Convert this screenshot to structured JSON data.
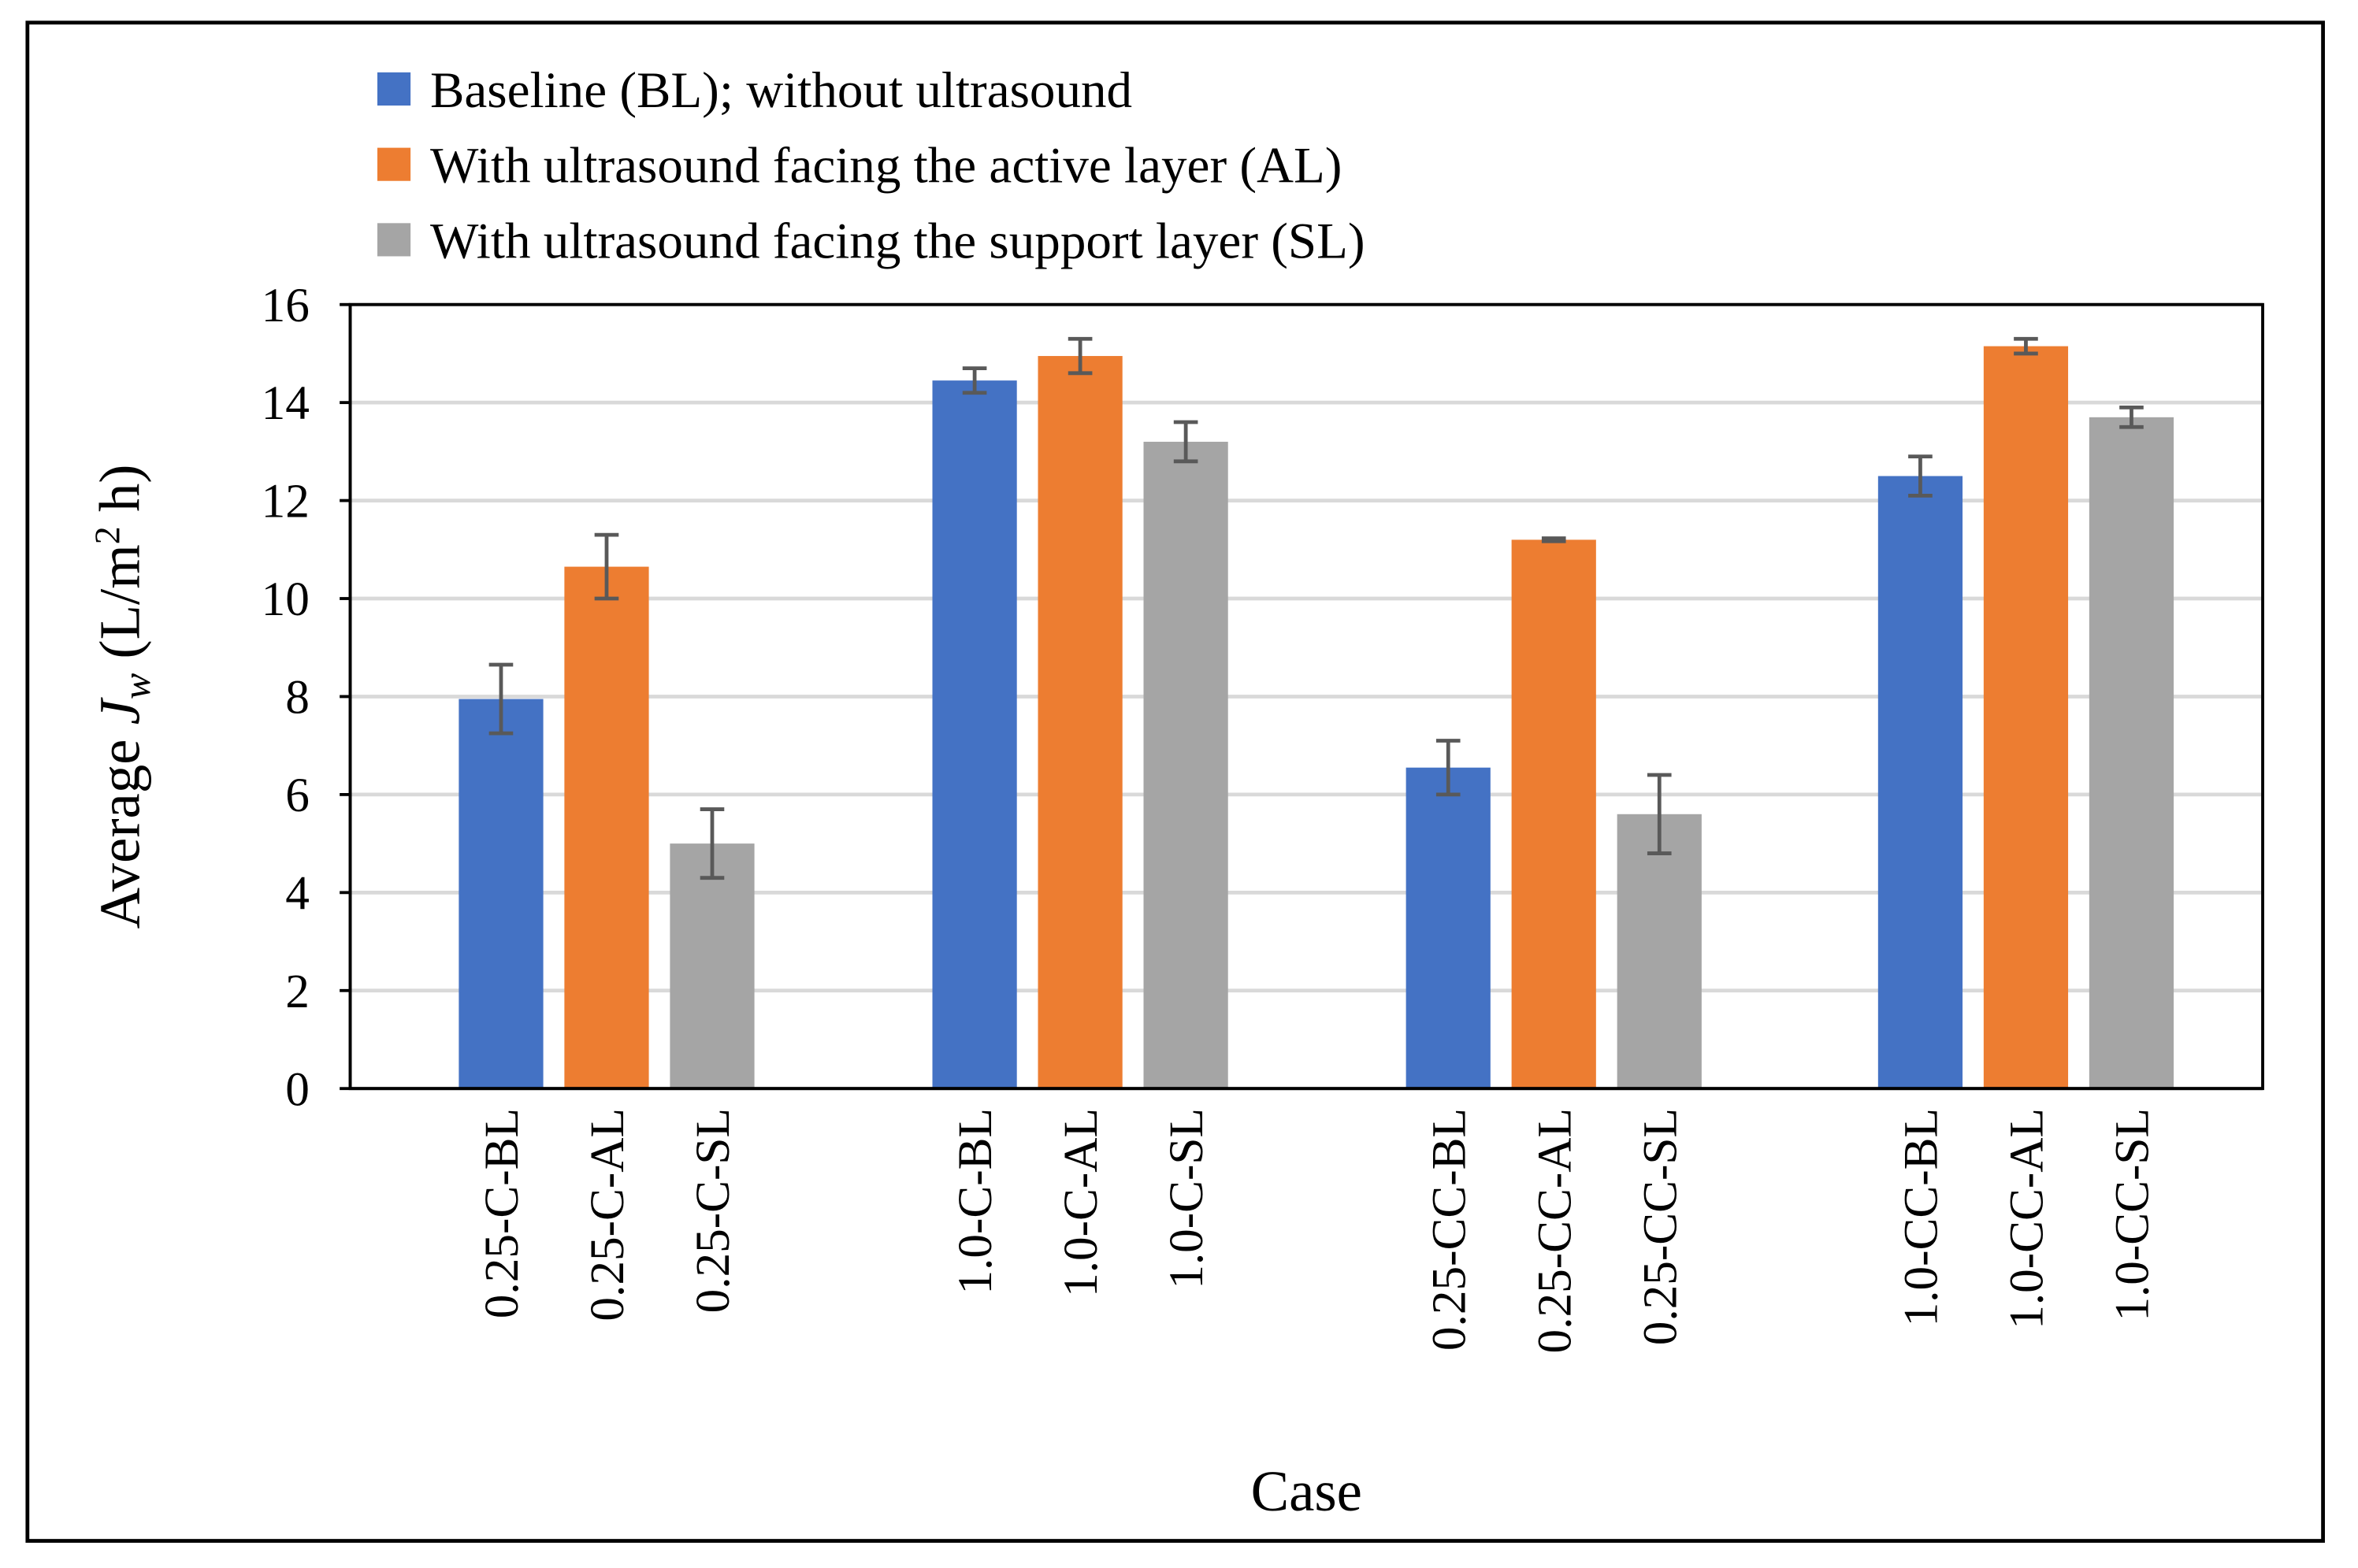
{
  "chart_data": {
    "type": "bar",
    "x_label": "Case",
    "y_label": {
      "prefix": "Average ",
      "symbol": "J",
      "subscript": "w",
      "unit": " (L/m",
      "superscript": "2",
      "unit_end": " h)"
    },
    "ylim": [
      0,
      16
    ],
    "yticks": [
      0,
      2,
      4,
      6,
      8,
      10,
      12,
      14,
      16
    ],
    "grid": true,
    "legend": "top",
    "series": [
      {
        "name": "Baseline (BL); without ultrasound",
        "color": "#4472c4",
        "labels": [
          "0.25-C-BL",
          "1.0-C-BL",
          "0.25-CC-BL",
          "1.0-CC-BL"
        ],
        "values": [
          7.95,
          14.45,
          6.55,
          12.5
        ],
        "errors": [
          0.7,
          0.25,
          0.55,
          0.4
        ]
      },
      {
        "name": "With ultrasound facing the active layer (AL)",
        "color": "#ed7d31",
        "labels": [
          "0.25-C-AL",
          "1.0-C-AL",
          "0.25-CC-AL",
          "1.0-CC-AL"
        ],
        "values": [
          10.65,
          14.95,
          11.2,
          15.15
        ],
        "errors": [
          0.65,
          0.35,
          0.03,
          0.15
        ]
      },
      {
        "name": "With ultrasound facing the support layer (SL)",
        "color": "#a5a5a5",
        "labels": [
          "0.25-C-SL",
          "1.0-C-SL",
          "0.25-CC-SL",
          "1.0-CC-SL"
        ],
        "values": [
          5.0,
          13.2,
          5.6,
          13.7
        ],
        "errors": [
          0.7,
          0.4,
          0.8,
          0.2
        ]
      }
    ]
  }
}
